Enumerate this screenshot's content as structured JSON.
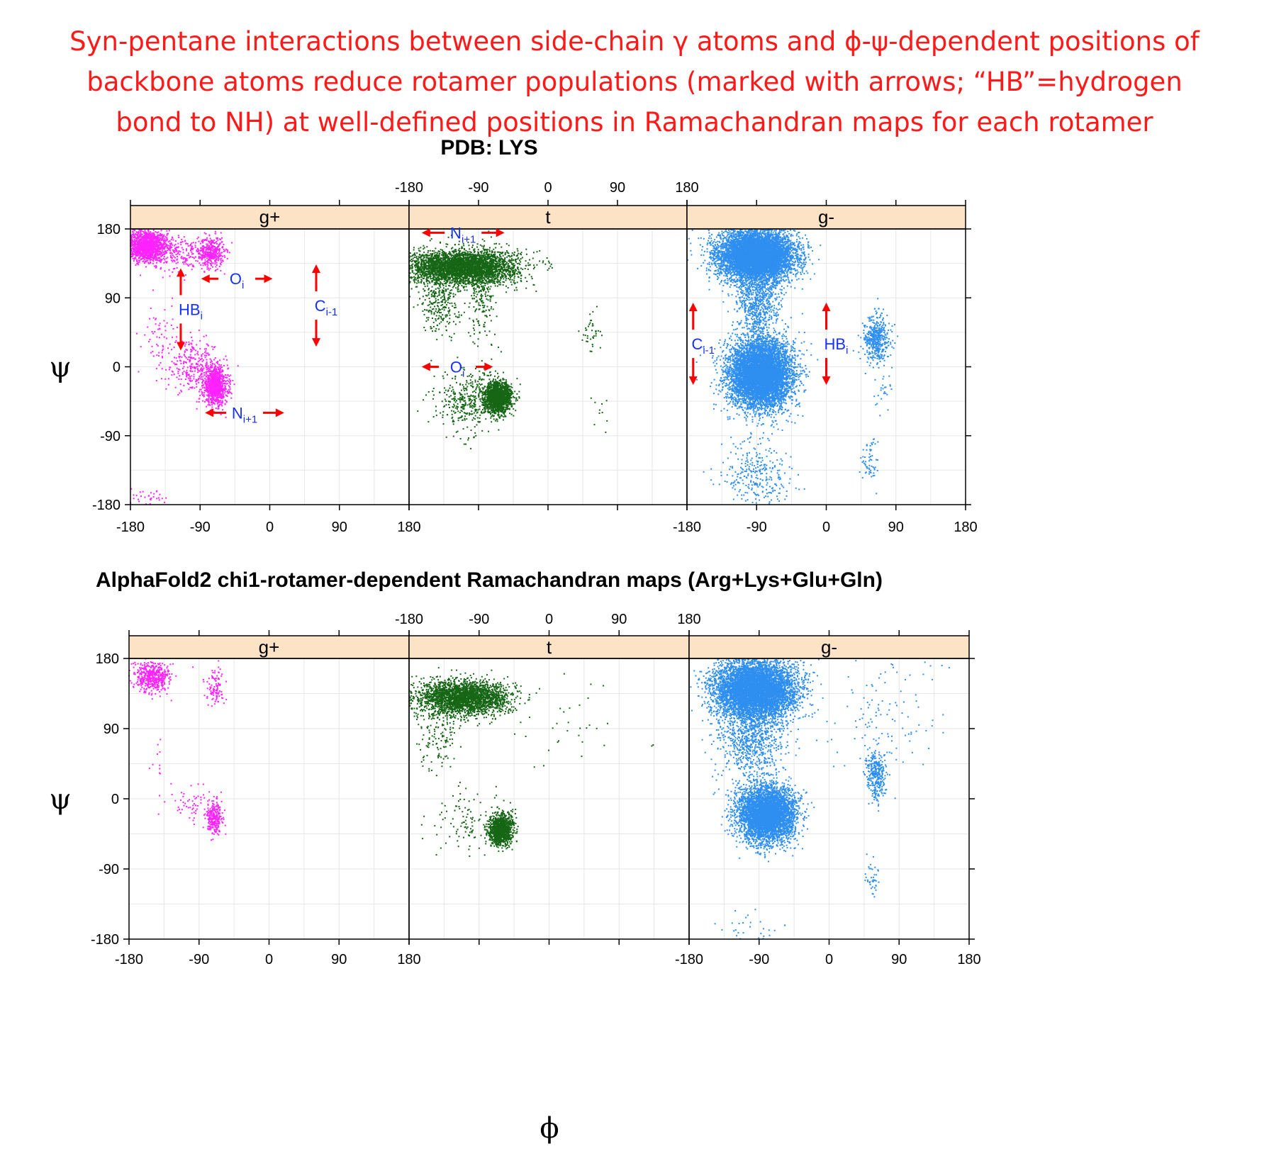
{
  "title_lines": [
    "Syn-pentane interactions between side-chain γ atoms and ϕ-ψ-dependent positions of",
    "backbone atoms reduce rotamer populations (marked with arrows; “HB”=hydrogen",
    "bond to NH) at well-defined positions in Ramachandran maps for each rotamer"
  ],
  "colors": {
    "title": "#ff1a1a",
    "strip_fill": "#fde3c6",
    "g+": "#ff22ff",
    "t": "#166616",
    "g-": "#2e8ff0",
    "annotation_arrow": "#ff0000",
    "annotation_text": "#1530ff",
    "grid": "#e6e6e6"
  },
  "x_axis_label": "ϕ",
  "y_axis_label": "ψ",
  "chart_data": [
    {
      "type": "scatter",
      "title": "PDB: LYS",
      "xlabel": "ϕ",
      "ylabel": "ψ",
      "xlim": [
        -180,
        180
      ],
      "ylim": [
        -180,
        180
      ],
      "ticks": [
        "-180",
        "-90",
        "0",
        "90",
        "180"
      ],
      "grid": true,
      "panels": [
        {
          "name": "g+",
          "clusters": [
            {
              "phi": -160,
              "psi": 158,
              "sd_phi": 14,
              "sd_psi": 10,
              "n": 1400
            },
            {
              "phi": -75,
              "psi": 150,
              "sd_phi": 8,
              "sd_psi": 10,
              "n": 350
            },
            {
              "phi": -112,
              "psi": 148,
              "sd_phi": 22,
              "sd_psi": 12,
              "n": 260
            },
            {
              "phi": -70,
              "psi": -25,
              "sd_phi": 8,
              "sd_psi": 12,
              "n": 900
            },
            {
              "phi": -98,
              "psi": 0,
              "sd_phi": 18,
              "sd_psi": 16,
              "n": 300
            },
            {
              "phi": -140,
              "psi": 40,
              "sd_phi": 12,
              "sd_psi": 20,
              "n": 60
            },
            {
              "phi": -160,
              "psi": -172,
              "sd_phi": 14,
              "sd_psi": 7,
              "n": 40
            }
          ],
          "annotations": [
            {
              "label": "O",
              "sub": "i",
              "direction": "horizontal",
              "phi_from": -85,
              "phi_to": 0,
              "psi": 115
            },
            {
              "label": "HB",
              "sub": "i",
              "direction": "vertical",
              "phi": -115,
              "psi_from": 125,
              "psi_to": 25
            },
            {
              "label": "C",
              "sub": "i-1",
              "direction": "vertical",
              "phi": 60,
              "psi_from": 130,
              "psi_to": 30
            },
            {
              "label": "N",
              "sub": "i+1",
              "direction": "horizontal",
              "phi": -35,
              "phi_from": -80,
              "phi_to": 15,
              "psi": -60
            }
          ]
        },
        {
          "name": "t",
          "clusters": [
            {
              "phi": -110,
              "psi": 130,
              "sd_phi": 35,
              "sd_psi": 11,
              "n": 3600
            },
            {
              "phi": -140,
              "psi": 90,
              "sd_phi": 12,
              "sd_psi": 25,
              "n": 300
            },
            {
              "phi": -85,
              "psi": 95,
              "sd_phi": 10,
              "sd_psi": 30,
              "n": 200
            },
            {
              "phi": -65,
              "psi": -40,
              "sd_phi": 9,
              "sd_psi": 10,
              "n": 1500
            },
            {
              "phi": -100,
              "psi": -45,
              "sd_phi": 22,
              "sd_psi": 20,
              "n": 400
            },
            {
              "phi": 55,
              "psi": 45,
              "sd_phi": 6,
              "sd_psi": 14,
              "n": 40
            },
            {
              "phi": 70,
              "psi": -65,
              "sd_phi": 5,
              "sd_psi": 12,
              "n": 10
            }
          ],
          "annotations": [
            {
              "label": "N",
              "sub": "i+1",
              "direction": "horizontal",
              "phi_from": -160,
              "phi_to": -60,
              "psi": 175
            },
            {
              "label": "O",
              "sub": "i",
              "direction": "horizontal",
              "phi_from": -160,
              "phi_to": -75,
              "psi": 0
            }
          ]
        },
        {
          "name": "g-",
          "clusters": [
            {
              "phi": -90,
              "psi": 145,
              "sd_phi": 24,
              "sd_psi": 16,
              "n": 7000
            },
            {
              "phi": -90,
              "psi": 85,
              "sd_phi": 14,
              "sd_psi": 25,
              "n": 700
            },
            {
              "phi": -85,
              "psi": -10,
              "sd_phi": 20,
              "sd_psi": 22,
              "n": 6500
            },
            {
              "phi": -90,
              "psi": -140,
              "sd_phi": 20,
              "sd_psi": 25,
              "n": 300
            },
            {
              "phi": 65,
              "psi": 35,
              "sd_phi": 8,
              "sd_psi": 15,
              "n": 450
            },
            {
              "phi": 55,
              "psi": -125,
              "sd_phi": 5,
              "sd_psi": 15,
              "n": 60
            },
            {
              "phi": 75,
              "psi": -30,
              "sd_phi": 8,
              "sd_psi": 20,
              "n": 30
            }
          ],
          "annotations": [
            {
              "label": "C",
              "sub": "i-1",
              "direction": "vertical",
              "phi": -172,
              "psi_from": 80,
              "psi_to": -20
            },
            {
              "label": "HB",
              "sub": "i",
              "direction": "vertical",
              "phi": 0,
              "psi_from": 80,
              "psi_to": -20
            }
          ]
        }
      ]
    },
    {
      "type": "scatter",
      "title": "AlphaFold2 chi1-rotamer-dependent Ramachandran maps (Arg+Lys+Glu+Gln)",
      "xlabel": "ϕ",
      "ylabel": "ψ",
      "xlim": [
        -180,
        180
      ],
      "ylim": [
        -180,
        180
      ],
      "ticks": [
        "-180",
        "-90",
        "0",
        "90",
        "180"
      ],
      "grid": true,
      "panels": [
        {
          "name": "g+",
          "clusters": [
            {
              "phi": -150,
              "psi": 155,
              "sd_phi": 12,
              "sd_psi": 9,
              "n": 450
            },
            {
              "phi": -68,
              "psi": 145,
              "sd_phi": 6,
              "sd_psi": 12,
              "n": 100
            },
            {
              "phi": -70,
              "psi": -25,
              "sd_phi": 5,
              "sd_psi": 11,
              "n": 250
            },
            {
              "phi": -100,
              "psi": -10,
              "sd_phi": 18,
              "sd_psi": 12,
              "n": 60
            },
            {
              "phi": -140,
              "psi": 45,
              "sd_phi": 5,
              "sd_psi": 12,
              "n": 10
            }
          ]
        },
        {
          "name": "t",
          "clusters": [
            {
              "phi": -110,
              "psi": 130,
              "sd_phi": 30,
              "sd_psi": 11,
              "n": 2600
            },
            {
              "phi": -140,
              "psi": 85,
              "sd_phi": 15,
              "sd_psi": 25,
              "n": 150
            },
            {
              "phi": -62,
              "psi": -40,
              "sd_phi": 8,
              "sd_psi": 10,
              "n": 1100
            },
            {
              "phi": -105,
              "psi": -30,
              "sd_phi": 20,
              "sd_psi": 20,
              "n": 100
            },
            {
              "phi": 40,
              "psi": 100,
              "sd_phi": 40,
              "sd_psi": 30,
              "n": 30
            }
          ]
        },
        {
          "name": "g-",
          "clusters": [
            {
              "phi": -95,
              "psi": 140,
              "sd_phi": 26,
              "sd_psi": 18,
              "n": 6000
            },
            {
              "phi": -100,
              "psi": 75,
              "sd_phi": 22,
              "sd_psi": 25,
              "n": 800
            },
            {
              "phi": -80,
              "psi": -20,
              "sd_phi": 18,
              "sd_psi": 18,
              "n": 4500
            },
            {
              "phi": 60,
              "psi": 30,
              "sd_phi": 6,
              "sd_psi": 15,
              "n": 300
            },
            {
              "phi": 55,
              "psi": -100,
              "sd_phi": 4,
              "sd_psi": 14,
              "n": 40
            },
            {
              "phi": 75,
              "psi": 100,
              "sd_phi": 30,
              "sd_psi": 40,
              "n": 120
            },
            {
              "phi": -100,
              "psi": -165,
              "sd_phi": 20,
              "sd_psi": 10,
              "n": 30
            }
          ]
        }
      ]
    }
  ]
}
